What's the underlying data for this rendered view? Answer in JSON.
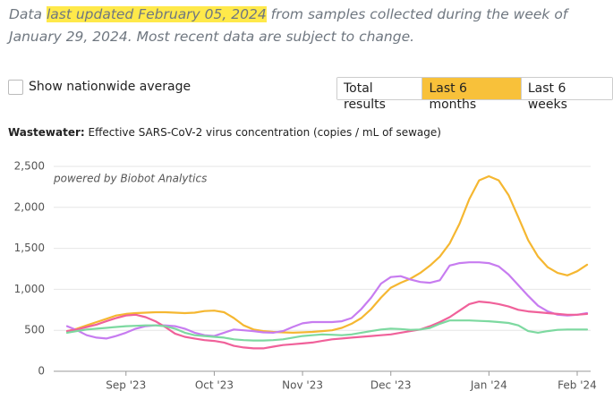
{
  "header": {
    "text_before": "Data ",
    "highlight": "last updated February 05, 2024",
    "text_after": " from samples collected during the week of January 29, 2024. Most recent data are subject to change."
  },
  "controls": {
    "checkbox_label": "Show nationwide average",
    "buttons": [
      "Total results",
      "Last 6 months",
      "Last 6 weeks"
    ],
    "active_button": 1
  },
  "chart_data": {
    "type": "line",
    "title_label": "Wastewater:",
    "title": "Effective SARS-CoV-2 virus concentration (copies / mL of sewage)",
    "annotation": "powered by Biobot Analytics",
    "categories": [
      null,
      null,
      null,
      null,
      null,
      null,
      "Sep '23",
      null,
      null,
      null,
      null,
      null,
      null,
      null,
      null,
      "Oct '23",
      null,
      null,
      null,
      null,
      null,
      null,
      null,
      null,
      "Nov '23",
      null,
      null,
      null,
      null,
      null,
      null,
      null,
      null,
      "Dec '23",
      null,
      null,
      null,
      null,
      null,
      null,
      null,
      null,
      null,
      "Jan '24",
      null,
      null,
      null,
      null,
      null,
      null,
      null,
      null,
      "Feb '24",
      null
    ],
    "series": [
      {
        "color": "#f5b731",
        "values": [
          490,
          520,
          560,
          600,
          640,
          680,
          700,
          710,
          715,
          720,
          720,
          715,
          710,
          715,
          735,
          740,
          720,
          650,
          560,
          510,
          490,
          480,
          475,
          470,
          475,
          480,
          490,
          500,
          530,
          580,
          650,
          760,
          900,
          1020,
          1080,
          1130,
          1200,
          1290,
          1400,
          1560,
          1800,
          2100,
          2330,
          2380,
          2330,
          2150,
          1880,
          1600,
          1400,
          1270,
          1200,
          1170,
          1220,
          1300
        ]
      },
      {
        "color": "#c77cf0",
        "values": [
          550,
          500,
          440,
          410,
          400,
          430,
          470,
          520,
          550,
          560,
          560,
          550,
          520,
          470,
          440,
          430,
          470,
          510,
          500,
          490,
          475,
          470,
          490,
          540,
          585,
          600,
          600,
          600,
          610,
          650,
          760,
          900,
          1070,
          1150,
          1160,
          1120,
          1090,
          1080,
          1110,
          1290,
          1320,
          1330,
          1330,
          1320,
          1280,
          1180,
          1050,
          920,
          800,
          730,
          690,
          680,
          690,
          710
        ]
      },
      {
        "color": "#f0619a",
        "values": [
          490,
          510,
          540,
          570,
          610,
          650,
          680,
          690,
          660,
          610,
          540,
          460,
          420,
          400,
          380,
          370,
          350,
          310,
          290,
          280,
          280,
          300,
          320,
          330,
          340,
          350,
          370,
          390,
          400,
          410,
          420,
          430,
          440,
          450,
          470,
          490,
          510,
          550,
          600,
          660,
          740,
          820,
          850,
          840,
          820,
          790,
          750,
          730,
          720,
          710,
          700,
          690,
          690,
          700
        ]
      },
      {
        "color": "#7dd9a0",
        "values": [
          470,
          490,
          510,
          520,
          530,
          540,
          550,
          555,
          560,
          560,
          550,
          520,
          470,
          440,
          430,
          420,
          410,
          390,
          380,
          375,
          375,
          380,
          390,
          410,
          430,
          440,
          450,
          445,
          440,
          450,
          470,
          490,
          510,
          520,
          515,
          505,
          510,
          530,
          580,
          620,
          620,
          620,
          615,
          610,
          600,
          590,
          560,
          490,
          470,
          490,
          505,
          510,
          510,
          510
        ]
      }
    ],
    "ylim": [
      0,
      2500
    ],
    "yticks": [
      0,
      500,
      {
        "value": 1000,
        "label": "1,000"
      },
      {
        "value": 1500,
        "label": "1,500"
      },
      {
        "value": 2000,
        "label": "2,000"
      },
      {
        "value": 2500,
        "label": "2,500"
      }
    ],
    "grid": true
  }
}
